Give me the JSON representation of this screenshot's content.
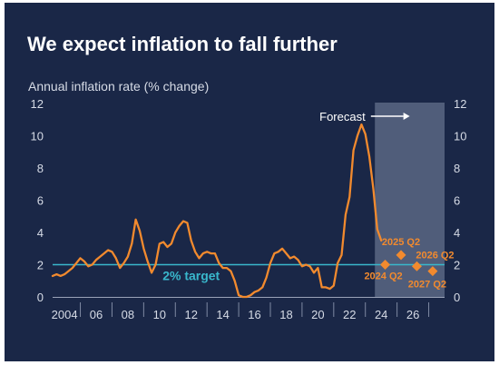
{
  "title": "We expect inflation to fall further",
  "colors": {
    "background": "#1a2747",
    "line": "#f28a2e",
    "target": "#39b7cc",
    "forecast_shade": "#5a6784",
    "text": "#d6dbe6"
  },
  "chart_data": {
    "type": "line",
    "title": "We expect inflation to fall further",
    "ylabel": "Annual inflation rate (% change)",
    "ylim": [
      0,
      12
    ],
    "yticks": [
      0,
      2,
      4,
      6,
      8,
      10,
      12
    ],
    "xlim": [
      2003.25,
      2028.0
    ],
    "xtick_labels": [
      {
        "x": 2004,
        "label": "2004"
      },
      {
        "x": 2006,
        "label": "06"
      },
      {
        "x": 2008,
        "label": "08"
      },
      {
        "x": 2010,
        "label": "10"
      },
      {
        "x": 2012,
        "label": "12"
      },
      {
        "x": 2014,
        "label": "14"
      },
      {
        "x": 2016,
        "label": "16"
      },
      {
        "x": 2018,
        "label": "18"
      },
      {
        "x": 2020,
        "label": "20"
      },
      {
        "x": 2022,
        "label": "22"
      },
      {
        "x": 2024,
        "label": "24"
      },
      {
        "x": 2026,
        "label": "26"
      }
    ],
    "target": {
      "value": 2,
      "label": "2% target"
    },
    "forecast": {
      "label": "Forecast",
      "start": 2023.6
    },
    "series": [
      {
        "values": [
          [
            2003.25,
            1.3
          ],
          [
            2003.5,
            1.4
          ],
          [
            2003.75,
            1.3
          ],
          [
            2004.0,
            1.4
          ],
          [
            2004.25,
            1.6
          ],
          [
            2004.5,
            1.8
          ],
          [
            2004.75,
            2.1
          ],
          [
            2005.0,
            2.4
          ],
          [
            2005.25,
            2.2
          ],
          [
            2005.5,
            1.9
          ],
          [
            2005.75,
            2.0
          ],
          [
            2006.0,
            2.3
          ],
          [
            2006.25,
            2.5
          ],
          [
            2006.5,
            2.7
          ],
          [
            2006.75,
            2.9
          ],
          [
            2007.0,
            2.8
          ],
          [
            2007.25,
            2.4
          ],
          [
            2007.5,
            1.8
          ],
          [
            2007.75,
            2.1
          ],
          [
            2008.0,
            2.5
          ],
          [
            2008.25,
            3.3
          ],
          [
            2008.5,
            4.8
          ],
          [
            2008.75,
            4.1
          ],
          [
            2009.0,
            3.0
          ],
          [
            2009.25,
            2.2
          ],
          [
            2009.5,
            1.5
          ],
          [
            2009.75,
            2.0
          ],
          [
            2010.0,
            3.3
          ],
          [
            2010.25,
            3.4
          ],
          [
            2010.5,
            3.1
          ],
          [
            2010.75,
            3.3
          ],
          [
            2011.0,
            4.0
          ],
          [
            2011.25,
            4.4
          ],
          [
            2011.5,
            4.7
          ],
          [
            2011.75,
            4.6
          ],
          [
            2012.0,
            3.5
          ],
          [
            2012.25,
            2.8
          ],
          [
            2012.5,
            2.4
          ],
          [
            2012.75,
            2.7
          ],
          [
            2013.0,
            2.8
          ],
          [
            2013.25,
            2.7
          ],
          [
            2013.5,
            2.7
          ],
          [
            2013.75,
            2.1
          ],
          [
            2014.0,
            1.8
          ],
          [
            2014.25,
            1.8
          ],
          [
            2014.5,
            1.6
          ],
          [
            2014.75,
            1.0
          ],
          [
            2015.0,
            0.1
          ],
          [
            2015.25,
            0.0
          ],
          [
            2015.5,
            0.0
          ],
          [
            2015.75,
            0.1
          ],
          [
            2016.0,
            0.3
          ],
          [
            2016.25,
            0.4
          ],
          [
            2016.5,
            0.6
          ],
          [
            2016.75,
            1.2
          ],
          [
            2017.0,
            2.1
          ],
          [
            2017.25,
            2.7
          ],
          [
            2017.5,
            2.8
          ],
          [
            2017.75,
            3.0
          ],
          [
            2018.0,
            2.7
          ],
          [
            2018.25,
            2.4
          ],
          [
            2018.5,
            2.5
          ],
          [
            2018.75,
            2.3
          ],
          [
            2019.0,
            1.9
          ],
          [
            2019.25,
            2.0
          ],
          [
            2019.5,
            1.9
          ],
          [
            2019.75,
            1.5
          ],
          [
            2020.0,
            1.8
          ],
          [
            2020.25,
            0.6
          ],
          [
            2020.5,
            0.6
          ],
          [
            2020.75,
            0.5
          ],
          [
            2021.0,
            0.7
          ],
          [
            2021.25,
            2.1
          ],
          [
            2021.5,
            2.6
          ],
          [
            2021.75,
            5.1
          ],
          [
            2022.0,
            6.2
          ],
          [
            2022.25,
            9.1
          ],
          [
            2022.5,
            10.0
          ],
          [
            2022.75,
            10.7
          ],
          [
            2023.0,
            10.1
          ],
          [
            2023.25,
            8.7
          ],
          [
            2023.5,
            6.7
          ],
          [
            2023.75,
            4.2
          ],
          [
            2024.0,
            3.5
          ]
        ]
      }
    ],
    "forecast_points": [
      {
        "x": 2024.25,
        "y": 2.0,
        "label": "2024 Q2"
      },
      {
        "x": 2025.25,
        "y": 2.6,
        "label": "2025 Q2"
      },
      {
        "x": 2026.25,
        "y": 1.9,
        "label": "2026 Q2"
      },
      {
        "x": 2027.25,
        "y": 1.6,
        "label": "2027 Q2"
      }
    ],
    "grid": false
  }
}
